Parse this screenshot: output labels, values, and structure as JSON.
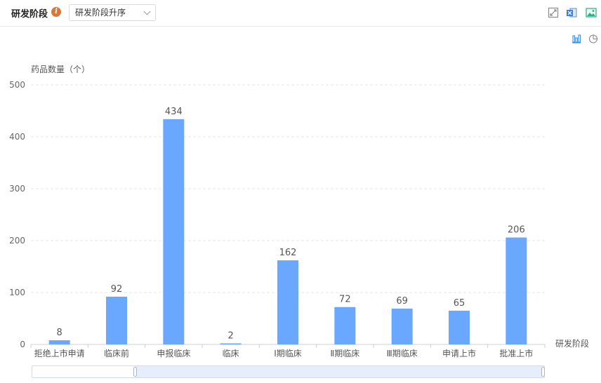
{
  "header": {
    "title": "研发阶段",
    "info_icon": "info-icon",
    "sort_select": {
      "value": "研发阶段升序"
    },
    "toolbar_icons": [
      "fullscreen-icon",
      "excel-export-icon",
      "image-export-icon"
    ],
    "chart_type_icons": [
      "bar-chart-icon",
      "pie-chart-icon"
    ]
  },
  "colors": {
    "bar": "#6aa7ff",
    "accent": "#3b8ee0",
    "info": "#d9783d"
  },
  "chart_data": {
    "type": "bar",
    "ylabel": "药品数量（个）",
    "xlabel": "研发阶段",
    "categories": [
      "拒绝上市申请",
      "临床前",
      "申报临床",
      "临床",
      "Ⅰ期临床",
      "Ⅱ期临床",
      "Ⅲ期临床",
      "申请上市",
      "批准上市"
    ],
    "values": [
      8,
      92,
      434,
      2,
      162,
      72,
      69,
      65,
      206
    ],
    "ylim": [
      0,
      500
    ],
    "yticks": [
      0,
      100,
      200,
      300,
      400,
      500
    ],
    "grid": true,
    "legend": "none"
  }
}
